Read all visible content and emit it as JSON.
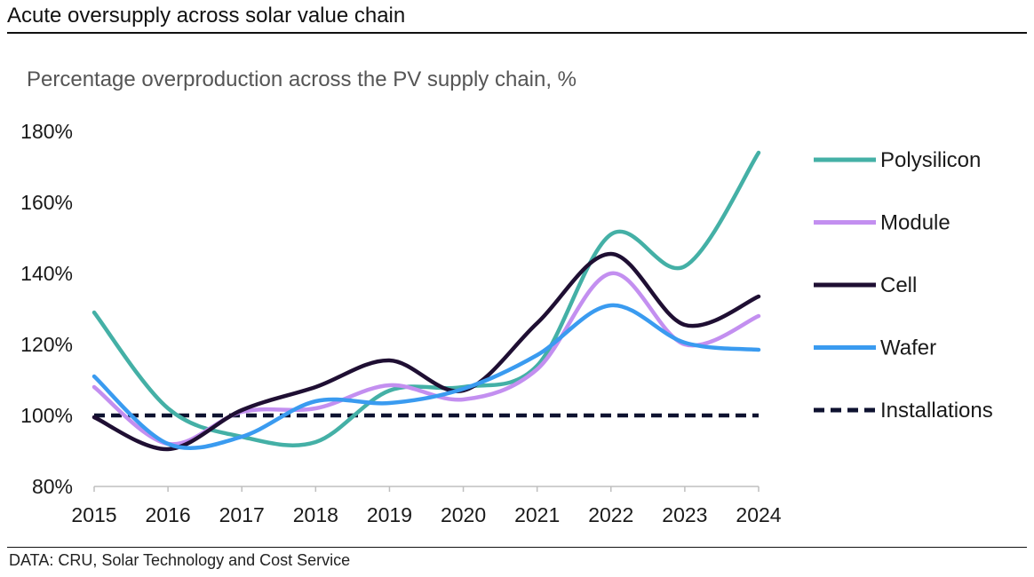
{
  "header": {
    "title": "Acute oversupply across solar value chain"
  },
  "footer": {
    "source": "DATA: CRU, Solar Technology and Cost Service"
  },
  "chart_data": {
    "type": "line",
    "subtitle": "Percentage overproduction across the PV supply chain, %",
    "xlabel": "",
    "ylabel": "",
    "x": [
      "2015",
      "2016",
      "2017",
      "2018",
      "2019",
      "2020",
      "2021",
      "2022",
      "2023",
      "2024"
    ],
    "ylim": [
      80,
      180
    ],
    "yticks": [
      80,
      100,
      120,
      140,
      160,
      180
    ],
    "ytick_labels": [
      "80%",
      "100%",
      "120%",
      "140%",
      "160%",
      "180%"
    ],
    "legend_position": "right",
    "grid": false,
    "series": [
      {
        "name": "Polysilicon",
        "color": "#44b0a6",
        "dash": "solid",
        "values": [
          129,
          102,
          94,
          92.5,
          107,
          108,
          114,
          151,
          142,
          174
        ]
      },
      {
        "name": "Module",
        "color": "#c38ff0",
        "dash": "solid",
        "values": [
          108,
          92,
          101,
          102,
          108.5,
          104.5,
          113,
          140,
          120,
          128
        ]
      },
      {
        "name": "Cell",
        "color": "#1f0f33",
        "dash": "solid",
        "values": [
          99.5,
          90.5,
          101.5,
          108,
          115.5,
          107,
          126,
          145.5,
          125.5,
          133.5
        ]
      },
      {
        "name": "Wafer",
        "color": "#3a9bf0",
        "dash": "solid",
        "values": [
          111,
          92,
          94,
          104,
          103.5,
          107.5,
          117,
          131,
          120.5,
          118.5
        ]
      },
      {
        "name": "Installations",
        "color": "#0e1230",
        "dash": "dashed",
        "values": [
          100,
          100,
          100,
          100,
          100,
          100,
          100,
          100,
          100,
          100
        ]
      }
    ]
  }
}
